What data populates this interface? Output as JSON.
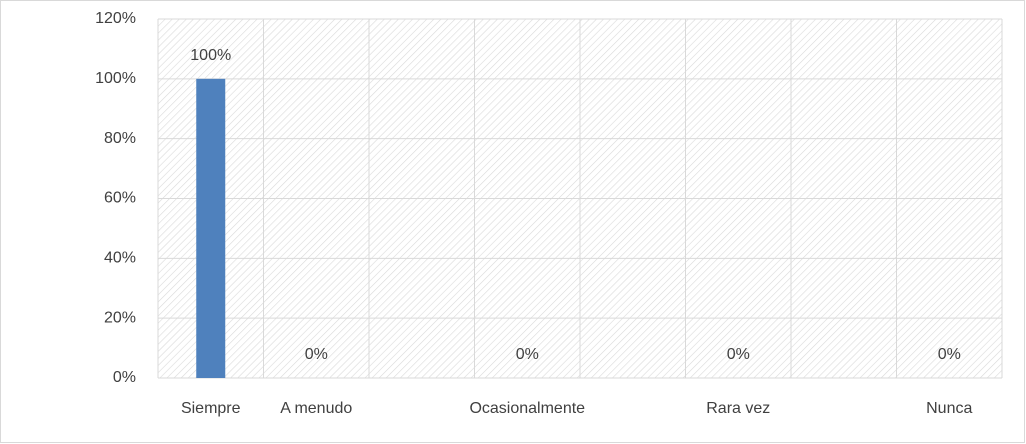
{
  "chart_data": {
    "type": "bar",
    "categories": [
      "Siempre",
      "A menudo",
      null,
      "Ocasionalmente",
      null,
      "Rara vez",
      null,
      "Nunca"
    ],
    "values": [
      100,
      0,
      null,
      0,
      null,
      0,
      null,
      0
    ],
    "value_labels": [
      "100%",
      "0%",
      null,
      "0%",
      null,
      "0%",
      null,
      "0%"
    ],
    "color": "#4f81bd",
    "ylim": [
      0,
      120
    ],
    "yticks": [
      {
        "value": 0,
        "label": "0%"
      },
      {
        "value": 20,
        "label": "20%"
      },
      {
        "value": 40,
        "label": "40%"
      },
      {
        "value": 60,
        "label": "60%"
      },
      {
        "value": 80,
        "label": "80%"
      },
      {
        "value": 100,
        "label": "100%"
      },
      {
        "value": 120,
        "label": "120%"
      }
    ],
    "grid": true
  }
}
